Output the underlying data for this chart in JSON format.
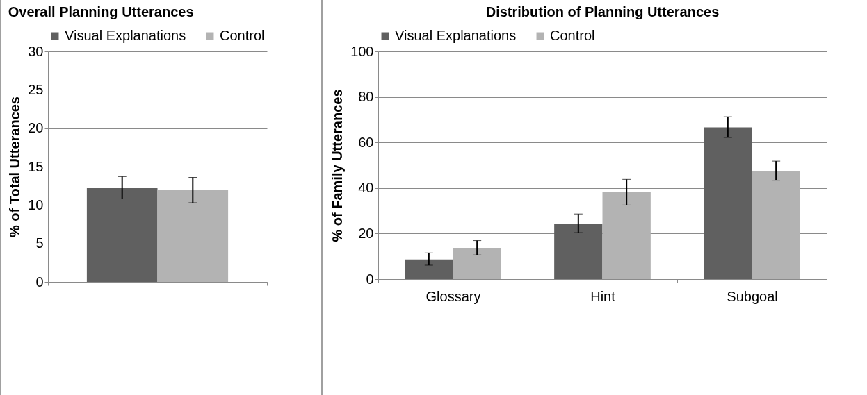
{
  "chart_data": [
    {
      "type": "bar",
      "title": "Overall Planning Utterances",
      "ylabel": "% of Total Utterances",
      "categories": [
        null
      ],
      "ylim": [
        0,
        30
      ],
      "yticks": [
        0,
        5,
        10,
        15,
        20,
        25,
        30
      ],
      "grid": "y",
      "legend": "top",
      "series": [
        {
          "name": "Visual Explanations",
          "color": "#606060",
          "values": [
            12.2
          ],
          "errors": [
            [
              10.8,
              13.7
            ]
          ]
        },
        {
          "name": "Control",
          "color": "#b3b3b3",
          "values": [
            12.0
          ],
          "errors": [
            [
              10.3,
              13.6
            ]
          ]
        }
      ]
    },
    {
      "type": "bar",
      "title": "Distribution of Planning Utterances",
      "ylabel": "% of Family Utterances",
      "categories": [
        "Glossary",
        "Hint",
        "Subgoal"
      ],
      "ylim": [
        0,
        100
      ],
      "yticks": [
        0,
        20,
        40,
        60,
        80,
        100
      ],
      "grid": "y",
      "legend": "top",
      "series": [
        {
          "name": "Visual Explanations",
          "color": "#606060",
          "values": [
            8.6,
            24.4,
            66.6
          ],
          "errors": [
            [
              6.1,
              11.5
            ],
            [
              20.4,
              28.6
            ],
            [
              62.2,
              71.3
            ]
          ]
        },
        {
          "name": "Control",
          "color": "#b3b3b3",
          "values": [
            13.7,
            38.1,
            47.5
          ],
          "errors": [
            [
              10.6,
              16.9
            ],
            [
              32.5,
              43.8
            ],
            [
              43.4,
              51.8
            ]
          ]
        }
      ]
    }
  ]
}
